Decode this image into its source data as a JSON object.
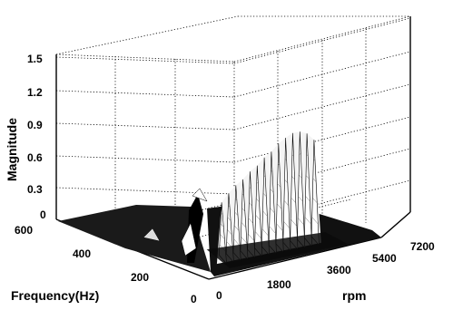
{
  "chart_data": {
    "type": "waterfall-3d",
    "zlabel": "Magnitude",
    "ylabel": "Frequency(Hz)",
    "xlabel": "rpm",
    "z_ticks": [
      "0",
      "0.3",
      "0.6",
      "0.9",
      "1.2",
      "1.5"
    ],
    "y_ticks": [
      "0",
      "200",
      "400",
      "600"
    ],
    "x_ticks": [
      "0",
      "1800",
      "3600",
      "5400",
      "7200"
    ],
    "zlim": [
      0,
      1.5
    ],
    "ylim": [
      0,
      600
    ],
    "xlim": [
      0,
      7200
    ],
    "grid": true,
    "peaks": [
      {
        "rpm": 1000,
        "magnitude": 0.55
      },
      {
        "rpm": 1300,
        "magnitude": 0.62
      },
      {
        "rpm": 1600,
        "magnitude": 0.68
      },
      {
        "rpm": 1900,
        "magnitude": 0.72
      },
      {
        "rpm": 2200,
        "magnitude": 0.78
      },
      {
        "rpm": 2500,
        "magnitude": 0.82
      },
      {
        "rpm": 2800,
        "magnitude": 0.88
      },
      {
        "rpm": 3100,
        "magnitude": 0.92
      },
      {
        "rpm": 3400,
        "magnitude": 0.98
      },
      {
        "rpm": 3700,
        "magnitude": 1.02
      },
      {
        "rpm": 4000,
        "magnitude": 1.05
      },
      {
        "rpm": 4300,
        "magnitude": 1.05
      },
      {
        "rpm": 4600,
        "magnitude": 1.02
      },
      {
        "rpm": 4900,
        "magnitude": 0.95
      }
    ]
  }
}
